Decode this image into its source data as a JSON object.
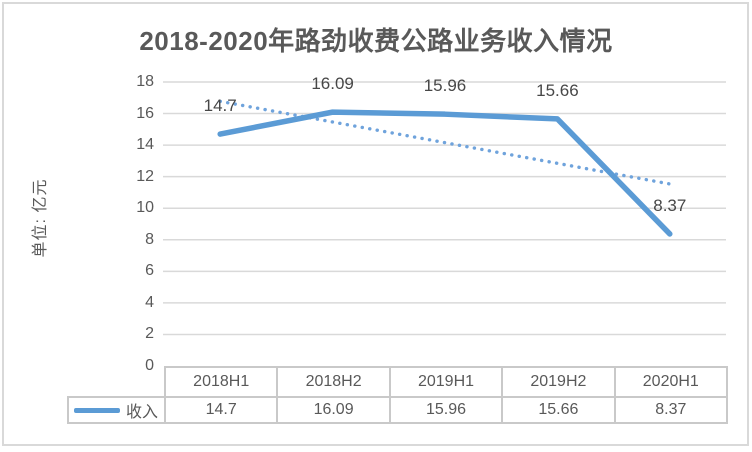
{
  "colors": {
    "series_line": "#5b9bd5",
    "trendline": "#6fa3dc",
    "gridline": "#d9d9d9",
    "frame_border": "#d9d9d9",
    "axis_text": "#595959",
    "data_label_text": "#474747",
    "table_border": "#c9c9c9",
    "table_text": "#595959",
    "title_text": "#595959"
  },
  "chart_data": {
    "type": "line",
    "title": "2018-2020年路劲收费公路业务收入情况",
    "ylabel": "单位: 亿元",
    "categories": [
      "2018H1",
      "2018H2",
      "2019H1",
      "2019H2",
      "2020H1"
    ],
    "series": [
      {
        "name": "收入",
        "values": [
          14.7,
          16.09,
          15.96,
          15.66,
          8.37
        ],
        "style": "solid-thick"
      }
    ],
    "data_labels": [
      "14.7",
      "16.09",
      "15.96",
      "15.66",
      "8.37"
    ],
    "yticks": [
      "18",
      "16",
      "14",
      "12",
      "10",
      "8",
      "6",
      "4",
      "2",
      "0"
    ],
    "ylim": [
      0,
      18
    ],
    "ytick_step": 2,
    "grid": "horizontal",
    "trendline": {
      "type": "linear",
      "style": "dotted"
    },
    "legend": {
      "label": "收入",
      "position": "table-left"
    },
    "data_table": true
  }
}
